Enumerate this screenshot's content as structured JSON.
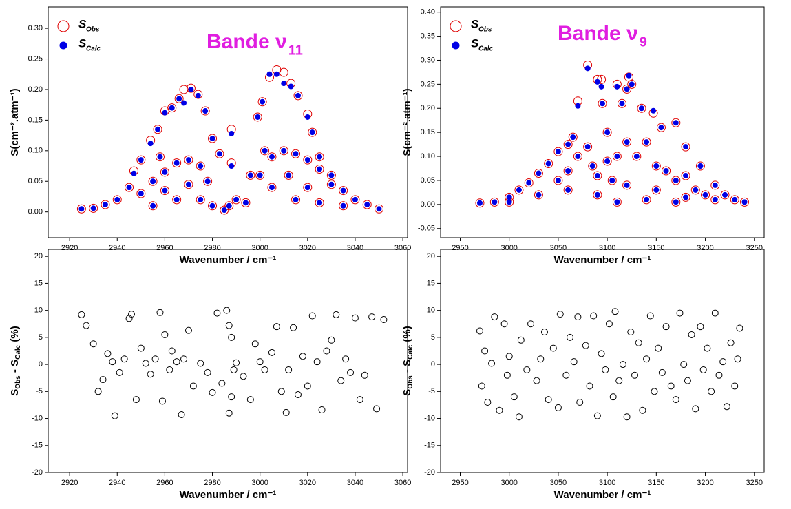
{
  "chart_data": [
    {
      "type": "scatter",
      "title": "Bande ν",
      "title_subscript": "11",
      "x_label": "Wavenumber / cm⁻¹",
      "y_label": "S(cm⁻².atm⁻¹)",
      "legend": "upper left",
      "xlim": [
        2911,
        3062
      ],
      "ylim": [
        -0.042,
        0.335
      ],
      "xticks": [
        2920,
        2940,
        2960,
        2980,
        3000,
        3020,
        3040,
        3060
      ],
      "yticks": [
        {
          "value": 0,
          "label": "0.00"
        },
        {
          "value": 0.05,
          "label": "0.05"
        },
        {
          "value": 0.1,
          "label": "0.10"
        },
        {
          "value": 0.15,
          "label": "0.15"
        },
        {
          "value": 0.2,
          "label": "0.20"
        },
        {
          "value": 0.25,
          "label": "0.25"
        },
        {
          "value": 0.3,
          "label": "0.30"
        }
      ],
      "x": [
        2925,
        2930,
        2935,
        2940,
        2945,
        2947,
        2950,
        2954,
        2957,
        2960,
        2963,
        2966,
        2968,
        2971,
        2974,
        2977,
        2980,
        2983,
        2988,
        2988,
        2990,
        2987,
        2999,
        3001,
        3004,
        3007,
        3010,
        3013,
        3016,
        3020,
        3022,
        3025,
        3030,
        3035,
        3040,
        3045,
        3050,
        2950,
        2955,
        2960,
        2965,
        2970,
        2975,
        2978,
        2960,
        2970,
        2965,
        2955,
        2975,
        2980,
        2985,
        3000,
        3005,
        3010,
        3015,
        3020,
        3025,
        3030,
        3005,
        3012,
        3020,
        3015,
        3025,
        3035,
        2994,
        2996,
        3002,
        2958
      ],
      "series": [
        {
          "name": "S",
          "subscript": "Obs",
          "color": "#e00000",
          "marker": "open",
          "values": [
            0.005,
            0.006,
            0.012,
            0.02,
            0.04,
            0.067,
            0.085,
            0.117,
            0.135,
            0.165,
            0.17,
            0.185,
            0.2,
            0.202,
            0.192,
            0.165,
            0.12,
            0.095,
            0.135,
            0.08,
            0.02,
            0.01,
            0.155,
            0.18,
            0.22,
            0.232,
            0.228,
            0.21,
            0.19,
            0.16,
            0.13,
            0.09,
            0.06,
            0.035,
            0.02,
            0.012,
            0.005,
            0.03,
            0.05,
            0.065,
            0.08,
            0.085,
            0.075,
            0.05,
            0.035,
            0.045,
            0.02,
            0.01,
            0.02,
            0.01,
            0.003,
            0.06,
            0.09,
            0.1,
            0.095,
            0.085,
            0.07,
            0.045,
            0.04,
            0.06,
            0.04,
            0.02,
            0.015,
            0.01,
            0.015,
            0.06,
            0.1,
            0.09
          ]
        },
        {
          "name": "S",
          "subscript": "Calc",
          "color": "#0000e6",
          "marker": "filled",
          "values": [
            0.005,
            0.006,
            0.012,
            0.02,
            0.04,
            0.063,
            0.085,
            0.112,
            0.135,
            0.162,
            0.17,
            0.185,
            0.178,
            0.2,
            0.19,
            0.165,
            0.12,
            0.095,
            0.128,
            0.075,
            0.02,
            0.01,
            0.155,
            0.18,
            0.225,
            0.225,
            0.21,
            0.205,
            0.19,
            0.155,
            0.13,
            0.09,
            0.06,
            0.035,
            0.02,
            0.012,
            0.005,
            0.03,
            0.05,
            0.065,
            0.08,
            0.085,
            0.075,
            0.05,
            0.035,
            0.045,
            0.02,
            0.01,
            0.02,
            0.01,
            0.003,
            0.06,
            0.09,
            0.1,
            0.095,
            0.085,
            0.07,
            0.045,
            0.04,
            0.06,
            0.04,
            0.02,
            0.015,
            0.01,
            0.015,
            0.06,
            0.1,
            0.09
          ]
        }
      ]
    },
    {
      "type": "scatter",
      "title": "Bande ν",
      "title_subscript": "9",
      "x_label": "Wavenumber / cm⁻¹",
      "y_label": "S(cm⁻².atm⁻¹)",
      "legend": "upper left",
      "xlim": [
        2930,
        3260
      ],
      "ylim": [
        -0.069,
        0.411
      ],
      "xticks": [
        2950,
        3000,
        3050,
        3100,
        3150,
        3200,
        3250
      ],
      "yticks": [
        {
          "value": -0.05,
          "label": "-0.05"
        },
        {
          "value": 0,
          "label": "0.00"
        },
        {
          "value": 0.05,
          "label": "0.05"
        },
        {
          "value": 0.1,
          "label": "0.10"
        },
        {
          "value": 0.15,
          "label": "0.15"
        },
        {
          "value": 0.2,
          "label": "0.20"
        },
        {
          "value": 0.25,
          "label": "0.25"
        },
        {
          "value": 0.3,
          "label": "0.30"
        },
        {
          "value": 0.35,
          "label": "0.35"
        },
        {
          "value": 0.4,
          "label": "0.40"
        }
      ],
      "x": [
        2970,
        2985,
        3000,
        3010,
        3020,
        3030,
        3040,
        3050,
        3060,
        3065,
        3070,
        3080,
        3090,
        3094,
        3095,
        3100,
        3110,
        3115,
        3120,
        3122,
        3125,
        3135,
        3147,
        3155,
        3170,
        3180,
        3195,
        3210,
        3220,
        3230,
        3240,
        3050,
        3060,
        3070,
        3080,
        3085,
        3090,
        3100,
        3105,
        3110,
        3120,
        3130,
        3140,
        3150,
        3160,
        3170,
        3180,
        3190,
        3200,
        3000,
        3030,
        3060,
        3090,
        3120,
        3150,
        3180,
        3210,
        3110,
        3140,
        3170
      ],
      "series": [
        {
          "name": "S",
          "subscript": "Obs",
          "color": "#e00000",
          "marker": "open",
          "values": [
            0.003,
            0.005,
            0.015,
            0.03,
            0.045,
            0.065,
            0.085,
            0.11,
            0.125,
            0.14,
            0.215,
            0.29,
            0.26,
            0.26,
            0.21,
            0.15,
            0.25,
            0.21,
            0.24,
            0.265,
            0.25,
            0.2,
            0.19,
            0.16,
            0.17,
            0.12,
            0.08,
            0.04,
            0.02,
            0.01,
            0.005,
            0.05,
            0.07,
            0.1,
            0.12,
            0.08,
            0.06,
            0.09,
            0.05,
            0.1,
            0.13,
            0.1,
            0.13,
            0.08,
            0.07,
            0.05,
            0.06,
            0.03,
            0.02,
            0.005,
            0.02,
            0.03,
            0.02,
            0.04,
            0.03,
            0.015,
            0.01,
            0.005,
            0.01,
            0.005
          ]
        },
        {
          "name": "S",
          "subscript": "Calc",
          "color": "#0000e6",
          "marker": "filled",
          "values": [
            0.003,
            0.005,
            0.015,
            0.03,
            0.045,
            0.065,
            0.085,
            0.11,
            0.125,
            0.14,
            0.205,
            0.283,
            0.255,
            0.245,
            0.21,
            0.15,
            0.245,
            0.21,
            0.24,
            0.268,
            0.25,
            0.2,
            0.195,
            0.16,
            0.17,
            0.12,
            0.08,
            0.04,
            0.02,
            0.01,
            0.005,
            0.05,
            0.07,
            0.1,
            0.12,
            0.08,
            0.06,
            0.09,
            0.05,
            0.1,
            0.13,
            0.1,
            0.13,
            0.08,
            0.07,
            0.05,
            0.06,
            0.03,
            0.02,
            0.005,
            0.02,
            0.03,
            0.02,
            0.04,
            0.03,
            0.015,
            0.01,
            0.005,
            0.01,
            0.005
          ]
        }
      ]
    },
    {
      "type": "scatter",
      "x_label": "Wavenumber / cm⁻¹",
      "y_label": [
        "S",
        "Obs",
        " - S",
        "Calc",
        " (%)"
      ],
      "xlim": [
        2911,
        3062
      ],
      "ylim": [
        -20,
        21.3
      ],
      "xticks": [
        2920,
        2940,
        2960,
        2980,
        3000,
        3020,
        3040,
        3060
      ],
      "yticks": [
        -20,
        -15,
        -10,
        -5,
        0,
        5,
        10,
        15,
        20
      ],
      "x": [
        2925,
        2927,
        2930,
        2932,
        2934,
        2936,
        2938,
        2939,
        2941,
        2943,
        2945,
        2946,
        2948,
        2950,
        2952,
        2954,
        2956,
        2958,
        2959,
        2960,
        2962,
        2963,
        2965,
        2967,
        2968,
        2970,
        2972,
        2975,
        2978,
        2980,
        2982,
        2984,
        2986,
        2987,
        2987,
        2988,
        2988,
        2989,
        2990,
        2993,
        2996,
        2998,
        3000,
        3002,
        3005,
        3007,
        3009,
        3011,
        3012,
        3014,
        3016,
        3018,
        3020,
        3022,
        3024,
        3026,
        3028,
        3030,
        3032,
        3034,
        3036,
        3038,
        3040,
        3042,
        3044,
        3047,
        3049,
        3052
      ],
      "series": [
        {
          "color": "#000000",
          "marker": "open",
          "values": [
            9.2,
            7.2,
            3.8,
            -5,
            -2.8,
            2,
            0.5,
            -9.5,
            -1.5,
            1,
            8.5,
            9.3,
            -6.5,
            3,
            0.2,
            -1.8,
            1,
            9.6,
            -6.8,
            5.5,
            -1,
            2.5,
            0.5,
            -9.3,
            1,
            6.3,
            -4,
            0.2,
            -1.5,
            -5.2,
            9.5,
            -3.5,
            10,
            -9,
            7.2,
            -6,
            5,
            -1,
            0.3,
            -2.2,
            -6.5,
            3.8,
            0.5,
            -1,
            2.2,
            7,
            -5,
            -8.9,
            -1,
            6.8,
            -5.6,
            1.5,
            -4,
            9,
            0.5,
            -8.4,
            2.5,
            4.5,
            9.2,
            -3,
            1,
            -1.5,
            8.6,
            -6.5,
            -2,
            8.8,
            -8.2,
            8.3
          ]
        }
      ]
    },
    {
      "type": "scatter",
      "x_label": "Wavenumber / cm⁻¹",
      "y_label": [
        "S",
        "Obs",
        " - S",
        "Calc",
        " (%)"
      ],
      "xlim": [
        2930,
        3260
      ],
      "ylim": [
        -20,
        21.3
      ],
      "xticks": [
        2950,
        3000,
        3050,
        3100,
        3150,
        3200,
        3250
      ],
      "yticks": [
        -20,
        -15,
        -10,
        -5,
        0,
        5,
        10,
        15,
        20
      ],
      "x": [
        2970,
        2972,
        2975,
        2978,
        2982,
        2985,
        2990,
        2995,
        2998,
        3000,
        3005,
        3010,
        3012,
        3018,
        3022,
        3028,
        3032,
        3036,
        3040,
        3045,
        3050,
        3052,
        3058,
        3062,
        3066,
        3070,
        3072,
        3078,
        3082,
        3086,
        3090,
        3094,
        3098,
        3102,
        3106,
        3108,
        3112,
        3116,
        3120,
        3124,
        3128,
        3132,
        3136,
        3140,
        3144,
        3148,
        3152,
        3156,
        3160,
        3165,
        3170,
        3174,
        3178,
        3182,
        3186,
        3190,
        3195,
        3198,
        3202,
        3206,
        3210,
        3214,
        3218,
        3222,
        3226,
        3230,
        3233,
        3235
      ],
      "series": [
        {
          "color": "#000000",
          "marker": "open",
          "values": [
            6.2,
            -4,
            2.5,
            -7,
            0.2,
            8.8,
            -8.5,
            7.5,
            -2,
            1.5,
            -6,
            -9.7,
            4.5,
            -1,
            7.5,
            -3,
            1,
            6,
            -6.5,
            3,
            -8,
            9.3,
            -2,
            5,
            0.5,
            8.8,
            -7,
            3.5,
            -4,
            9,
            -9.5,
            2,
            -1,
            7.5,
            -6,
            9.8,
            -3,
            0,
            -9.7,
            6,
            -2,
            4,
            -8.5,
            1,
            9,
            -5,
            3,
            -1.5,
            7,
            -4,
            -6.5,
            9.5,
            0,
            -3,
            5.5,
            -8.2,
            7,
            -1,
            3,
            -5,
            9.5,
            -2,
            0.5,
            -7.8,
            4,
            -4,
            1,
            6.7
          ]
        }
      ]
    }
  ]
}
